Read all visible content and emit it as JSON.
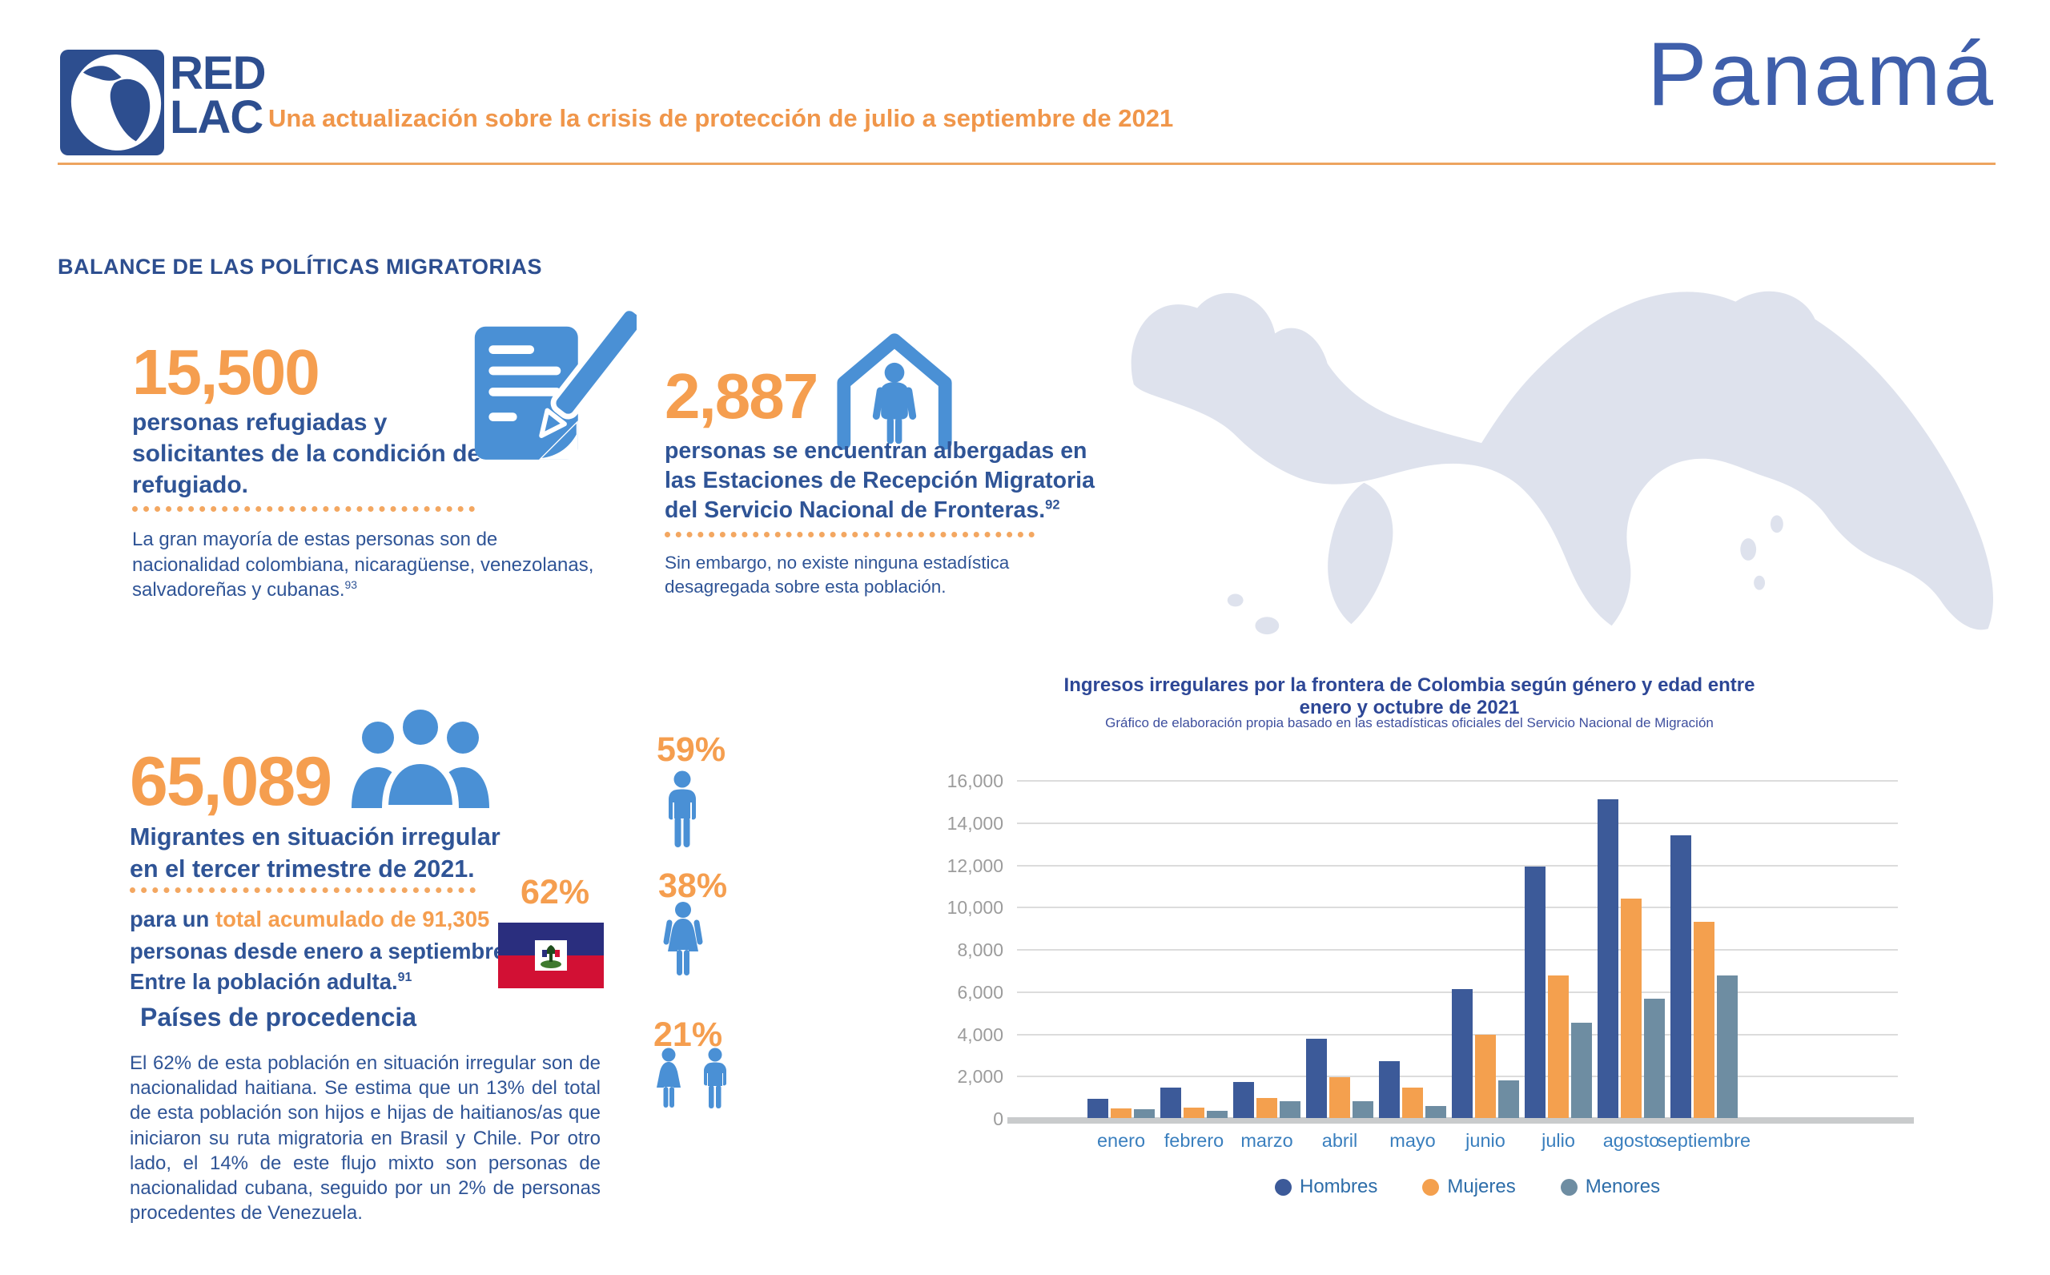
{
  "header": {
    "logo_line1": "RED",
    "logo_line2": "LAC",
    "subtitle": "Una actualización sobre la crisis de protección de julio a septiembre de 2021",
    "country": "Panamá"
  },
  "section_title": "BALANCE DE LAS POLÍTICAS MIGRATORIAS",
  "stats": {
    "refugees": {
      "value": "15,500",
      "caption": "personas refugiadas y solicitantes de la condición de refugiado.",
      "note": "La gran mayoría de estas personas son de nacionalidad colombiana, nicaragüense, venezolanas, salvadoreñas y cubanas.",
      "note_ref": "93"
    },
    "sheltered": {
      "value": "2,887",
      "caption": "personas se encuentran albergadas en las Estaciones de Recepción Migratoria del Servicio Nacional de Fronteras.",
      "caption_ref": "92",
      "note": "Sin embargo, no existe ninguna estadística desagregada sobre esta población."
    },
    "migrants": {
      "value": "65,089",
      "caption": "Migrantes en situación irregular en el tercer trimestre de 2021.",
      "note_part1": "para un ",
      "note_highlight": "total acumulado de 91,305",
      "note_part2": " personas desde enero a septiembre.",
      "note2": "Entre la población adulta.",
      "note2_ref": "91"
    },
    "percent_male": "59%",
    "percent_female": "38%",
    "percent_minors": "21%",
    "percent_haiti": "62%"
  },
  "origin": {
    "title": "Países de procedencia",
    "body": "El 62% de esta población en situación irregular son de nacionalidad haitiana. Se estima que un 13% del total de esta población son hijos e hijas de haitianos/as que iniciaron su ruta migratoria en Brasil y Chile. Por otro lado, el 14% de este flujo mixto son personas de nacionalidad cubana, seguido por un 2% de personas procedentes de Venezuela."
  },
  "chart_data": {
    "type": "bar",
    "title": "Ingresos irregulares por la frontera de Colombia según género y edad entre enero y octubre de 2021",
    "subtitle": "Gráfico de elaboración propia basado en las estadísticas oficiales del Servicio Nacional de Migración",
    "categories": [
      "enero",
      "febrero",
      "marzo",
      "abril",
      "mayo",
      "junio",
      "julio",
      "agosto",
      "septiembre"
    ],
    "series": [
      {
        "name": "Hombres",
        "color": "#3C5A99",
        "values": [
          900,
          1450,
          1700,
          3750,
          2700,
          6100,
          11900,
          15100,
          13400
        ]
      },
      {
        "name": "Mujeres",
        "color": "#F4A04E",
        "values": [
          450,
          500,
          950,
          1950,
          1450,
          3950,
          6750,
          10400,
          9300
        ]
      },
      {
        "name": "Menores",
        "color": "#6E8DA2",
        "values": [
          400,
          350,
          800,
          800,
          550,
          1800,
          4500,
          5650,
          6750
        ]
      }
    ],
    "ylim": [
      0,
      16000
    ],
    "ytick_step": 2000,
    "grid": true,
    "legend_position": "bottom"
  },
  "colors": {
    "accent_orange": "#F59E4F",
    "navy_text": "#2F5496",
    "icon_blue": "#4A90D5",
    "map_fill": "#DEE2ED",
    "haiti_blue": "#2A2E7E",
    "haiti_red": "#D21034"
  }
}
